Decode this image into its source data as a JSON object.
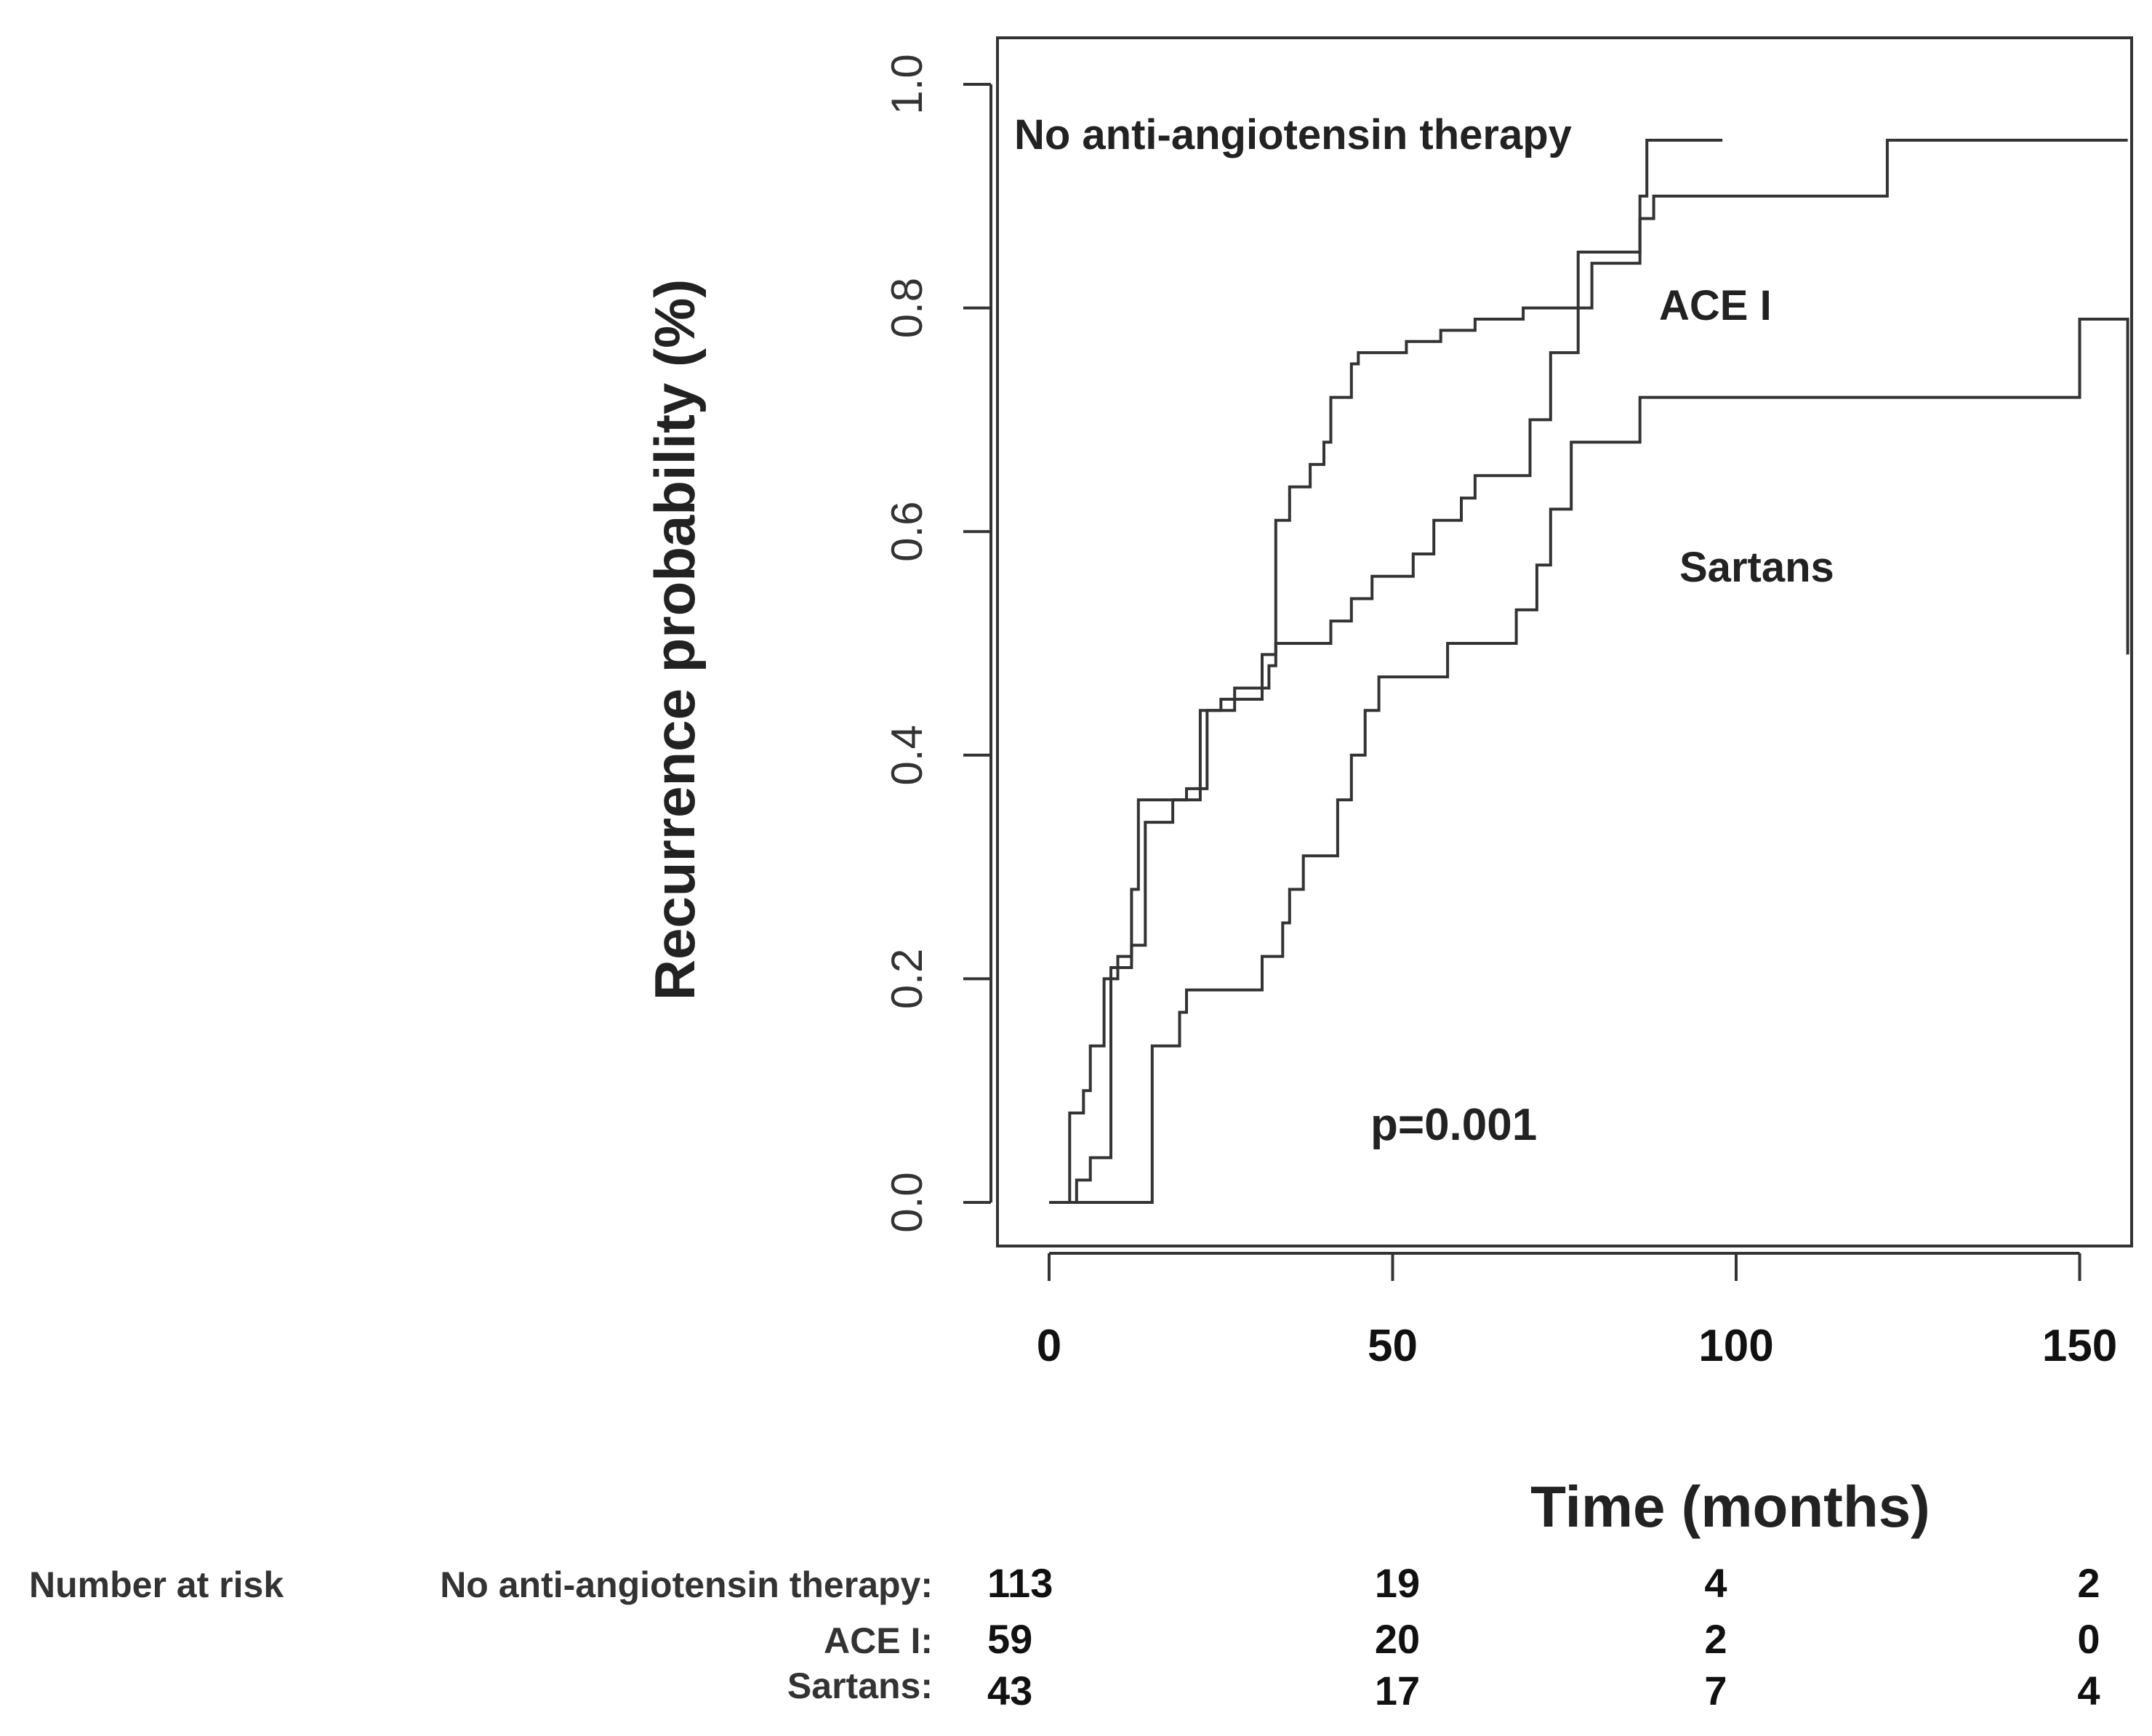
{
  "chart_data": {
    "type": "line",
    "subtype": "kaplan-meier-step",
    "ylabel": "Recurrence probability (%)",
    "xlabel": "Time (months)",
    "xlim": [
      -8,
      157
    ],
    "ylim": [
      -0.04,
      1.04
    ],
    "xticks": [
      "0",
      "50",
      "100",
      "150"
    ],
    "xtick_values": [
      0,
      50,
      100,
      150
    ],
    "yticks": [
      "0.0",
      "0.2",
      "0.4",
      "0.6",
      "0.8",
      "1.0"
    ],
    "ytick_values": [
      0,
      0.2,
      0.4,
      0.6,
      0.8,
      1.0
    ],
    "annotation": "p=0.001",
    "series": [
      {
        "name": "No anti-angiotensin therapy",
        "label": "No anti-angiotensin therapy",
        "points": [
          [
            0,
            0
          ],
          [
            3,
            0
          ],
          [
            3,
            0.08
          ],
          [
            5,
            0.08
          ],
          [
            5,
            0.1
          ],
          [
            6,
            0.1
          ],
          [
            6,
            0.14
          ],
          [
            8,
            0.14
          ],
          [
            8,
            0.2
          ],
          [
            10,
            0.2
          ],
          [
            10,
            0.22
          ],
          [
            12,
            0.22
          ],
          [
            12,
            0.28
          ],
          [
            13,
            0.28
          ],
          [
            13,
            0.36
          ],
          [
            20,
            0.36
          ],
          [
            20,
            0.37
          ],
          [
            23,
            0.37
          ],
          [
            23,
            0.44
          ],
          [
            27,
            0.44
          ],
          [
            27,
            0.46
          ],
          [
            32,
            0.46
          ],
          [
            32,
            0.48
          ],
          [
            33,
            0.48
          ],
          [
            33,
            0.61
          ],
          [
            35,
            0.61
          ],
          [
            35,
            0.64
          ],
          [
            38,
            0.64
          ],
          [
            38,
            0.66
          ],
          [
            40,
            0.66
          ],
          [
            40,
            0.68
          ],
          [
            41,
            0.68
          ],
          [
            41,
            0.72
          ],
          [
            44,
            0.72
          ],
          [
            44,
            0.75
          ],
          [
            45,
            0.75
          ],
          [
            45,
            0.76
          ],
          [
            52,
            0.76
          ],
          [
            52,
            0.77
          ],
          [
            57,
            0.77
          ],
          [
            57,
            0.78
          ],
          [
            62,
            0.78
          ],
          [
            62,
            0.79
          ],
          [
            69,
            0.79
          ],
          [
            69,
            0.8
          ],
          [
            77,
            0.8
          ],
          [
            77,
            0.85
          ],
          [
            86,
            0.85
          ],
          [
            86,
            0.9
          ],
          [
            87,
            0.9
          ],
          [
            87,
            0.95
          ],
          [
            98,
            0.95
          ]
        ]
      },
      {
        "name": "ACE I",
        "label": "ACE I",
        "points": [
          [
            0,
            0
          ],
          [
            4,
            0
          ],
          [
            4,
            0.02
          ],
          [
            6,
            0.02
          ],
          [
            6,
            0.04
          ],
          [
            9,
            0.04
          ],
          [
            9,
            0.21
          ],
          [
            12,
            0.21
          ],
          [
            12,
            0.23
          ],
          [
            14,
            0.23
          ],
          [
            14,
            0.34
          ],
          [
            18,
            0.34
          ],
          [
            18,
            0.36
          ],
          [
            22,
            0.36
          ],
          [
            22,
            0.44
          ],
          [
            25,
            0.44
          ],
          [
            25,
            0.45
          ],
          [
            31,
            0.45
          ],
          [
            31,
            0.49
          ],
          [
            33,
            0.49
          ],
          [
            33,
            0.5
          ],
          [
            41,
            0.5
          ],
          [
            41,
            0.52
          ],
          [
            44,
            0.52
          ],
          [
            44,
            0.54
          ],
          [
            47,
            0.54
          ],
          [
            47,
            0.56
          ],
          [
            53,
            0.56
          ],
          [
            53,
            0.58
          ],
          [
            56,
            0.58
          ],
          [
            56,
            0.61
          ],
          [
            60,
            0.61
          ],
          [
            60,
            0.63
          ],
          [
            62,
            0.63
          ],
          [
            62,
            0.65
          ],
          [
            70,
            0.65
          ],
          [
            70,
            0.7
          ],
          [
            73,
            0.7
          ],
          [
            73,
            0.76
          ],
          [
            77,
            0.76
          ],
          [
            77,
            0.8
          ],
          [
            79,
            0.8
          ],
          [
            79,
            0.84
          ],
          [
            86,
            0.84
          ],
          [
            86,
            0.88
          ],
          [
            88,
            0.88
          ],
          [
            88,
            0.9
          ],
          [
            122,
            0.9
          ],
          [
            122,
            0.95
          ],
          [
            157,
            0.95
          ]
        ]
      },
      {
        "name": "Sartans",
        "label": "Sartans",
        "points": [
          [
            0,
            0
          ],
          [
            15,
            0
          ],
          [
            15,
            0.14
          ],
          [
            19,
            0.14
          ],
          [
            19,
            0.17
          ],
          [
            20,
            0.17
          ],
          [
            20,
            0.19
          ],
          [
            31,
            0.19
          ],
          [
            31,
            0.22
          ],
          [
            34,
            0.22
          ],
          [
            34,
            0.25
          ],
          [
            35,
            0.25
          ],
          [
            35,
            0.28
          ],
          [
            37,
            0.28
          ],
          [
            37,
            0.31
          ],
          [
            42,
            0.31
          ],
          [
            42,
            0.36
          ],
          [
            44,
            0.36
          ],
          [
            44,
            0.4
          ],
          [
            46,
            0.4
          ],
          [
            46,
            0.44
          ],
          [
            48,
            0.44
          ],
          [
            48,
            0.47
          ],
          [
            58,
            0.47
          ],
          [
            58,
            0.5
          ],
          [
            68,
            0.5
          ],
          [
            68,
            0.53
          ],
          [
            71,
            0.53
          ],
          [
            71,
            0.57
          ],
          [
            73,
            0.57
          ],
          [
            73,
            0.62
          ],
          [
            76,
            0.62
          ],
          [
            76,
            0.68
          ],
          [
            86,
            0.68
          ],
          [
            86,
            0.72
          ],
          [
            150,
            0.72
          ],
          [
            150,
            0.79
          ],
          [
            157,
            0.79
          ],
          [
            157,
            0.49
          ]
        ]
      }
    ],
    "number_at_risk": {
      "title": "Number at risk",
      "rows": [
        {
          "label": "No anti-angiotensin therapy:",
          "values": [
            "113",
            "19",
            "4",
            "2"
          ]
        },
        {
          "label": "ACE I:",
          "values": [
            "59",
            "20",
            "2",
            "0"
          ]
        },
        {
          "label": "Sartans:",
          "values": [
            "43",
            "17",
            "7",
            "4"
          ]
        }
      ]
    }
  }
}
